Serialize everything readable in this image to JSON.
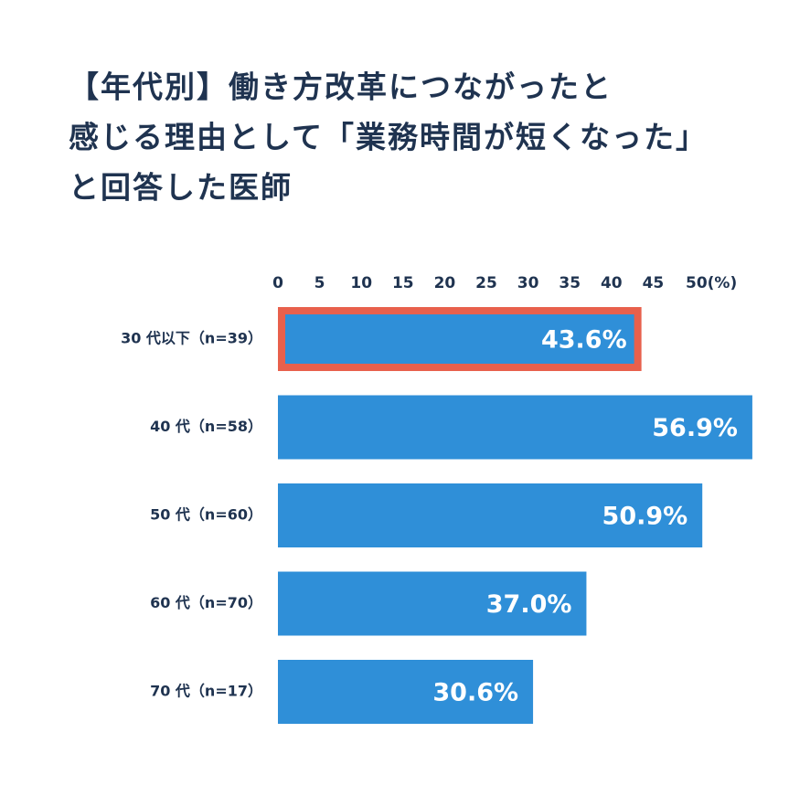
{
  "chart_data": {
    "type": "bar",
    "orientation": "horizontal",
    "title": [
      "【年代別】働き方改革につながったと",
      "感じる理由として「業務時間が短くなった」",
      "と回答した医師"
    ],
    "categories": [
      "30 代以下（n=39）",
      "40 代（n=58）",
      "50 代（n=60）",
      "60 代（n=70）",
      "70 代（n=17）"
    ],
    "values": [
      43.6,
      56.9,
      50.9,
      37.0,
      30.6
    ],
    "value_labels": [
      "43.6%",
      "56.9%",
      "50.9%",
      "37.0%",
      "30.6%"
    ],
    "color": "#2f8fd8",
    "highlight": 0,
    "highlight_color": "#e8604c",
    "xlim": [
      0,
      50
    ],
    "xticks": [
      0,
      5,
      10,
      15,
      20,
      25,
      30,
      35,
      40,
      45,
      {
        "value": 50,
        "label": "50(%)"
      }
    ]
  }
}
